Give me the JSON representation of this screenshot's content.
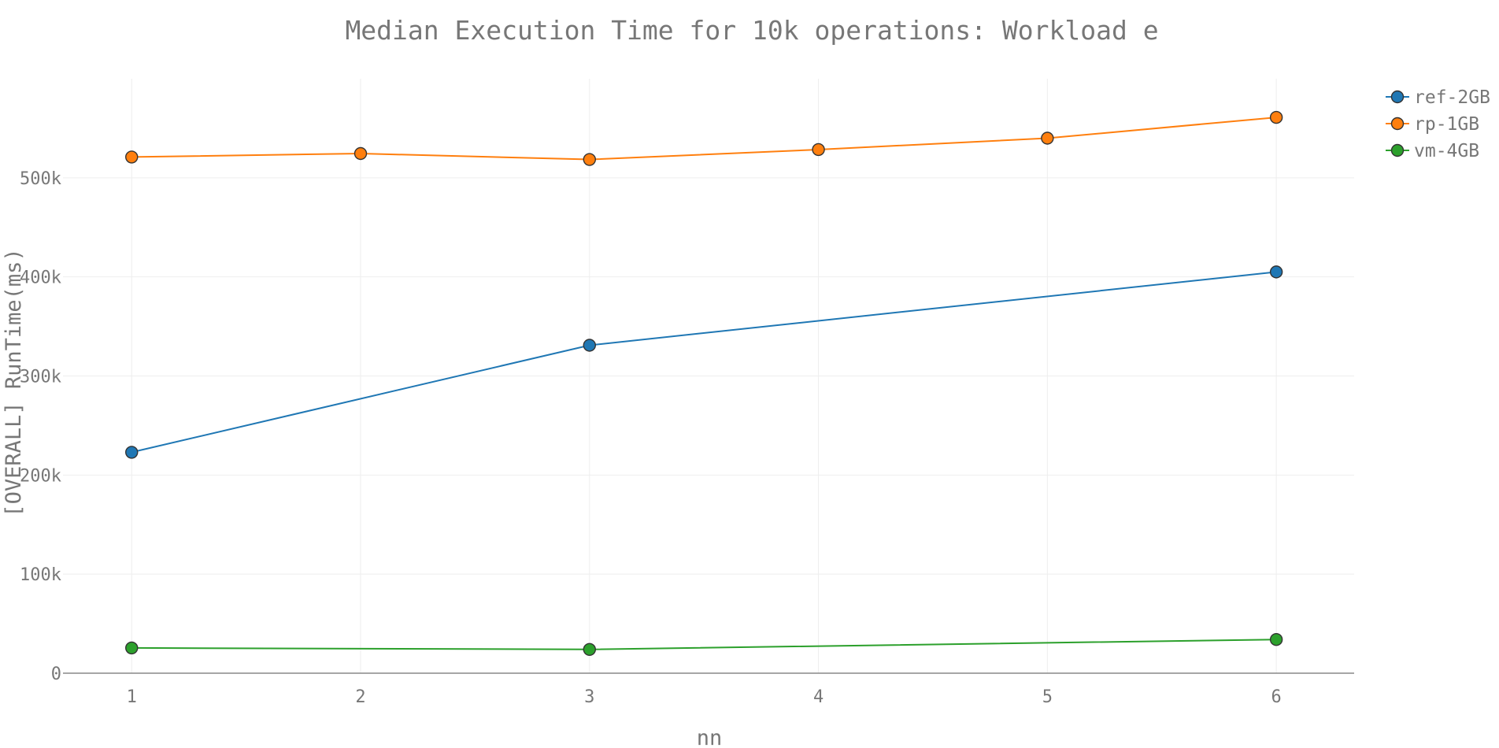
{
  "chart_data": {
    "type": "line",
    "title": "Median Execution Time for 10k operations: Workload e",
    "xlabel": "nn",
    "ylabel": "[OVERALL] RunTime(ms)",
    "x_ticks": [
      "1",
      "2",
      "3",
      "4",
      "5",
      "6"
    ],
    "y_ticks": [
      {
        "value": 0,
        "label": "0"
      },
      {
        "value": 100000,
        "label": "100k"
      },
      {
        "value": 200000,
        "label": "200k"
      },
      {
        "value": 300000,
        "label": "300k"
      },
      {
        "value": 400000,
        "label": "400k"
      },
      {
        "value": 500000,
        "label": "500k"
      }
    ],
    "xlim": [
      0.7,
      6.34
    ],
    "ylim": [
      0,
      600000
    ],
    "grid": true,
    "legend_position": "top-right",
    "series": [
      {
        "name": "ref-2GB",
        "color": "#1f77b4",
        "x": [
          1,
          3,
          6
        ],
        "y": [
          223000,
          331000,
          405000
        ]
      },
      {
        "name": "rp-1GB",
        "color": "#ff7f0e",
        "x": [
          1,
          2,
          3,
          4,
          5,
          6
        ],
        "y": [
          521000,
          524500,
          518500,
          528500,
          540000,
          561000
        ]
      },
      {
        "name": "vm-4GB",
        "color": "#2ca02c",
        "x": [
          1,
          3,
          6
        ],
        "y": [
          25500,
          24000,
          34000
        ]
      }
    ]
  }
}
